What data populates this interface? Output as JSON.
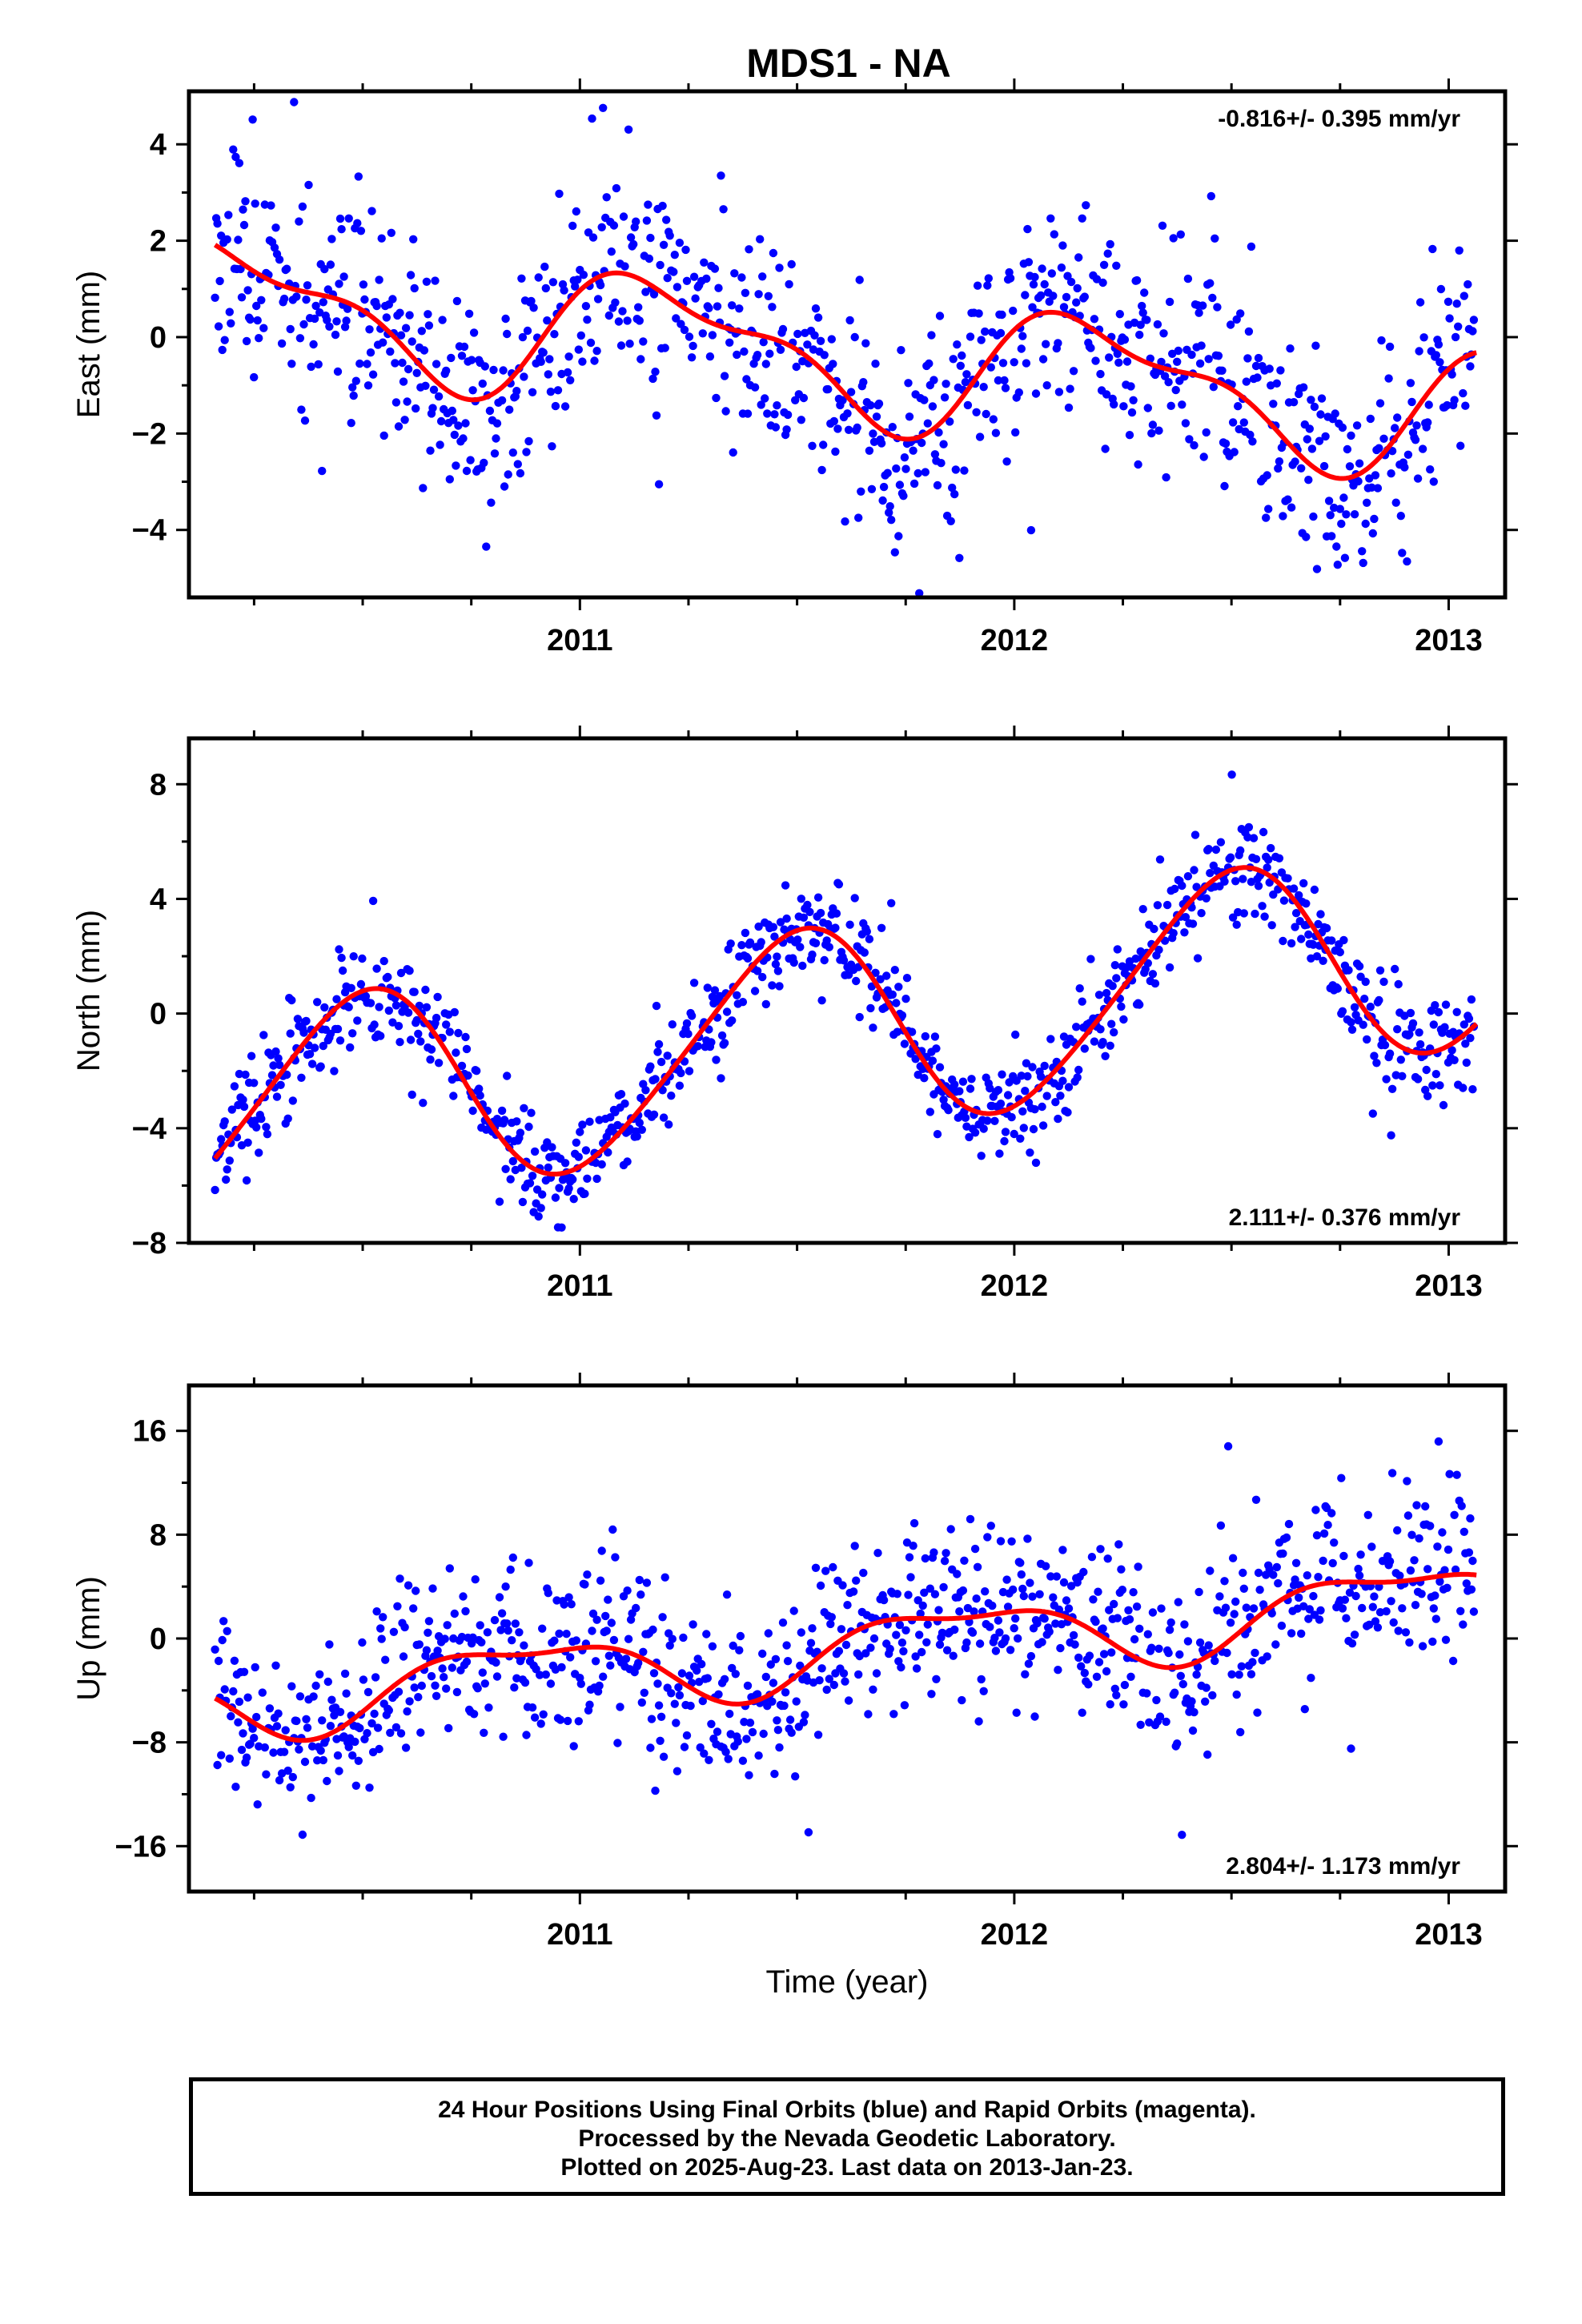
{
  "figure": {
    "title": "MDS1 - NA",
    "xlabel": "Time (year)",
    "footer": [
      "24 Hour Positions Using Final Orbits (blue) and Rapid Orbits (magenta).",
      "Processed by the Nevada Geodetic Laboratory.",
      "Plotted on 2025-Aug-23. Last data on 2013-Jan-23."
    ],
    "colors": {
      "data": "#0000ff",
      "model": "#ff0000",
      "frame": "#000000"
    }
  },
  "chart_data": [
    {
      "type": "scatter",
      "ylabel": "East (mm)",
      "rate_label": "-0.816+/- 0.395 mm/yr",
      "rate_position": "top-right",
      "xlim": [
        2010.1,
        2013.13
      ],
      "ylim": [
        -5.4,
        5.1
      ],
      "xticks": [
        2011,
        2012,
        2013
      ],
      "yticks": [
        -4,
        -2,
        0,
        2,
        4
      ],
      "model": {
        "offset": -0.4,
        "rate": -0.816,
        "rate_ref": 2011.6,
        "noise": [
          {
            "amp": 1.2,
            "period": 1.0,
            "phase": 0.35
          },
          {
            "amp": 0.5,
            "period": 0.5,
            "phase": 1.2
          }
        ]
      },
      "scatter": {
        "spread": 1.15,
        "seed": 11,
        "step": 0.0028
      },
      "series": [
        {
          "name": "Final Orbits",
          "color": "#0000ff"
        },
        {
          "name": "Model",
          "color": "#ff0000"
        }
      ]
    },
    {
      "type": "scatter",
      "ylabel": "North (mm)",
      "rate_label": "2.111+/- 0.376 mm/yr",
      "rate_position": "bottom-right",
      "xlim": [
        2010.1,
        2013.13
      ],
      "ylim": [
        -8.0,
        9.6
      ],
      "xticks": [
        2011,
        2012,
        2013
      ],
      "yticks": [
        -8,
        -4,
        0,
        4,
        8
      ],
      "model": {
        "offset": -0.6,
        "rate": 2.111,
        "rate_ref": 2011.6,
        "noise": [
          {
            "amp": 3.6,
            "period": 1.0,
            "phase": -1.5
          },
          {
            "amp": 0.4,
            "period": 0.5,
            "phase": 0.3
          }
        ]
      },
      "scatter": {
        "spread": 0.85,
        "seed": 23,
        "step": 0.0028
      },
      "series": [
        {
          "name": "Final Orbits",
          "color": "#0000ff"
        },
        {
          "name": "Model",
          "color": "#ff0000"
        }
      ]
    },
    {
      "type": "scatter",
      "ylabel": "Up (mm)",
      "rate_label": "2.804+/- 1.173 mm/yr",
      "rate_position": "bottom-right",
      "xlim": [
        2010.1,
        2013.13
      ],
      "ylim": [
        -19.5,
        19.5
      ],
      "xticks": [
        2011,
        2012,
        2013
      ],
      "yticks": [
        -16,
        -8,
        0,
        8,
        16
      ],
      "model": {
        "offset": -0.8,
        "rate": 2.804,
        "rate_ref": 2011.6,
        "noise": [
          {
            "amp": 2.6,
            "period": 1.0,
            "phase": 2.4
          },
          {
            "amp": 1.0,
            "period": 0.5,
            "phase": 0.0
          }
        ]
      },
      "scatter": {
        "spread": 3.3,
        "seed": 37,
        "step": 0.0028
      },
      "series": [
        {
          "name": "Final Orbits",
          "color": "#0000ff"
        },
        {
          "name": "Model",
          "color": "#ff0000"
        }
      ]
    }
  ]
}
